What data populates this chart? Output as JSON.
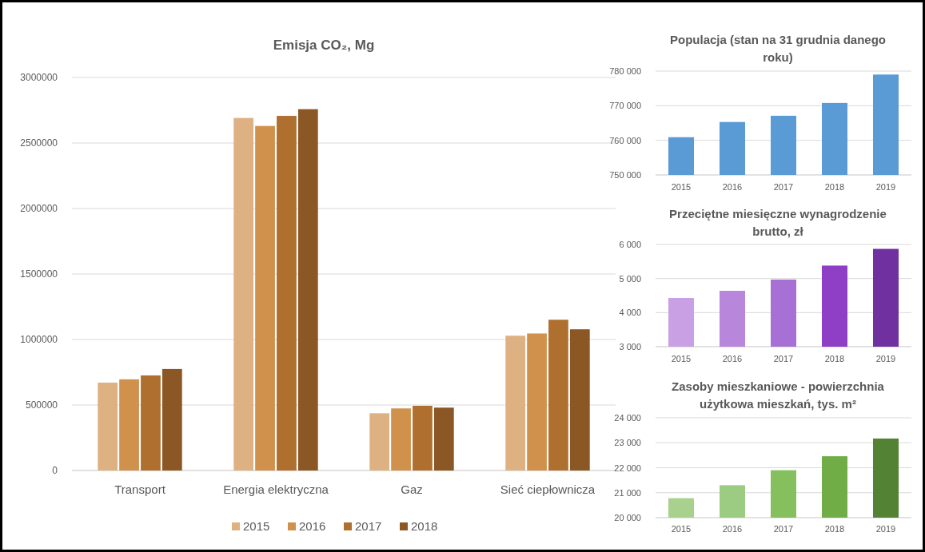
{
  "chart_data": [
    {
      "type": "bar",
      "title": "Emisja CO₂, Mg",
      "categories": [
        "Transport",
        "Energia elektryczna",
        "Gaz",
        "Sieć ciepłownicza"
      ],
      "series": [
        {
          "name": "2015",
          "color": "#deb183",
          "values": [
            671000,
            2691000,
            437000,
            1029000
          ]
        },
        {
          "name": "2016",
          "color": "#d0914d",
          "values": [
            696000,
            2630000,
            474000,
            1046000
          ]
        },
        {
          "name": "2017",
          "color": "#ae6f2f",
          "values": [
            726000,
            2707000,
            494000,
            1151000
          ]
        },
        {
          "name": "2018",
          "color": "#8b5724",
          "values": [
            775000,
            2758000,
            480000,
            1078000
          ]
        }
      ],
      "ylim": [
        0,
        3000000
      ],
      "yticks": [
        0,
        500000,
        1000000,
        1500000,
        2000000,
        2500000,
        3000000
      ],
      "grid": "y",
      "legend": "bottom"
    },
    {
      "type": "bar",
      "title": "Populacja (stan na 31 grudnia danego roku)",
      "categories": [
        "2015",
        "2016",
        "2017",
        "2018",
        "2019"
      ],
      "values": [
        760900,
        765300,
        767100,
        770800,
        779000
      ],
      "colors": [
        "#5b9bd5",
        "#5b9bd5",
        "#5b9bd5",
        "#5b9bd5",
        "#5b9bd5"
      ],
      "ylim": [
        750000,
        780000
      ],
      "yticks": [
        {
          "value": 750000,
          "label": "750 000"
        },
        {
          "value": 760000,
          "label": "760 000"
        },
        {
          "value": 770000,
          "label": "770 000"
        },
        {
          "value": 780000,
          "label": "780 000"
        }
      ],
      "grid": "y"
    },
    {
      "type": "bar",
      "title": "Przeciętne miesięczne wynagrodzenie brutto, zł",
      "categories": [
        "2015",
        "2016",
        "2017",
        "2018",
        "2019"
      ],
      "values": [
        4430,
        4640,
        4970,
        5380,
        5870
      ],
      "colors": [
        "#c9a0e3",
        "#b886db",
        "#a770d4",
        "#8e3fc6",
        "#7030a0"
      ],
      "ylim": [
        3000,
        6000
      ],
      "yticks": [
        {
          "value": 3000,
          "label": "3 000"
        },
        {
          "value": 4000,
          "label": "4 000"
        },
        {
          "value": 5000,
          "label": "5 000"
        },
        {
          "value": 6000,
          "label": "6 000"
        }
      ],
      "grid": "y"
    },
    {
      "type": "bar",
      "title": "Zasoby mieszkaniowe - powierzchnia użytkowa mieszkań, tys. m²",
      "categories": [
        "2015",
        "2016",
        "2017",
        "2018",
        "2019"
      ],
      "values": [
        20780,
        21300,
        21900,
        22460,
        23170
      ],
      "colors": [
        "#a9d18e",
        "#9ccc82",
        "#86bf5d",
        "#70ad47",
        "#548235"
      ],
      "ylim": [
        20000,
        24000
      ],
      "yticks": [
        {
          "value": 20000,
          "label": "20 000"
        },
        {
          "value": 21000,
          "label": "21 000"
        },
        {
          "value": 22000,
          "label": "22 000"
        },
        {
          "value": 23000,
          "label": "23 000"
        },
        {
          "value": 24000,
          "label": "24 000"
        }
      ],
      "grid": "y"
    }
  ]
}
